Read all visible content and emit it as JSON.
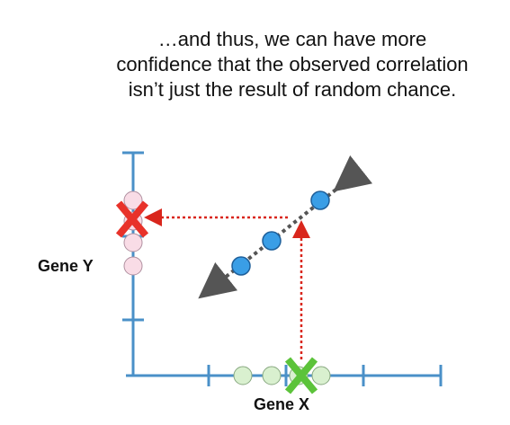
{
  "caption": "…and thus, we can have more confidence that the observed correlation isn’t just the result of random chance.",
  "axes": {
    "y_label": "Gene Y",
    "x_label": "Gene X"
  },
  "colors": {
    "axis": "#4a90c8",
    "blue_point": "#3a9ee6",
    "pink_point": "#f9dce6",
    "green_point": "#d9f0cf",
    "red_x": "#e8322a",
    "green_x": "#5cc33a",
    "dotted_red": "#d9261c",
    "fit_line": "#555555"
  },
  "icons": [
    "red-x-icon",
    "green-x-icon"
  ]
}
